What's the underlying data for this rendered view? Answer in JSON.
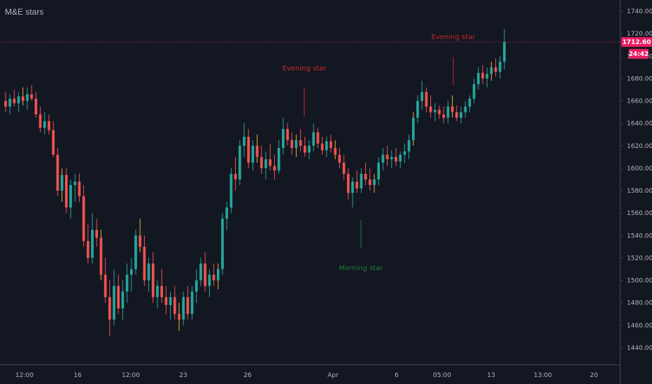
{
  "chart": {
    "title": "M&E stars"
  },
  "colors": {
    "background": "#131722",
    "up": "#26a69a",
    "down": "#ef5350",
    "wick_extra": "#e5b33b",
    "evening_star": "#c62828",
    "morning_star": "#1e7d32",
    "price_line": "#e91e63",
    "axis_text": "#b2b5be",
    "axis_border": "#434651"
  },
  "chart_data": {
    "type": "candlestick",
    "title": "M&E stars",
    "ylim": [
      1425,
      1750
    ],
    "y_ticks": [
      1440,
      1460,
      1480,
      1500,
      1520,
      1540,
      1560,
      1580,
      1600,
      1620,
      1640,
      1660,
      1680,
      1700,
      1720,
      1740
    ],
    "x_tick_labels": [
      "12:00",
      "16",
      "12:00",
      "23",
      "26",
      "Apr",
      "6",
      "05:00",
      "13",
      "13:00",
      "20"
    ],
    "last_price": "1712.60",
    "last_price_value": 1712.6,
    "countdown": "24:42",
    "annotations": [
      {
        "label": "Evening star",
        "kind": "evening",
        "price": 1665
      },
      {
        "label": "Morning star",
        "kind": "morning",
        "price": 1545
      },
      {
        "label": "Evening star",
        "kind": "evening",
        "price": 1695
      }
    ],
    "candles_ohlc": [
      [
        1660,
        1668,
        1650,
        1655
      ],
      [
        1655,
        1666,
        1648,
        1662
      ],
      [
        1662,
        1670,
        1655,
        1658
      ],
      [
        1658,
        1668,
        1650,
        1664
      ],
      [
        1664,
        1672,
        1656,
        1660
      ],
      [
        1660,
        1672,
        1652,
        1666
      ],
      [
        1666,
        1674,
        1660,
        1662
      ],
      [
        1662,
        1668,
        1645,
        1648
      ],
      [
        1648,
        1655,
        1632,
        1636
      ],
      [
        1636,
        1650,
        1630,
        1642
      ],
      [
        1642,
        1648,
        1630,
        1634
      ],
      [
        1634,
        1642,
        1610,
        1612
      ],
      [
        1612,
        1618,
        1575,
        1580
      ],
      [
        1580,
        1600,
        1570,
        1594
      ],
      [
        1594,
        1600,
        1560,
        1565
      ],
      [
        1565,
        1590,
        1555,
        1585
      ],
      [
        1585,
        1595,
        1570,
        1588
      ],
      [
        1588,
        1595,
        1570,
        1575
      ],
      [
        1575,
        1585,
        1530,
        1535
      ],
      [
        1535,
        1550,
        1515,
        1520
      ],
      [
        1520,
        1560,
        1515,
        1545
      ],
      [
        1545,
        1555,
        1530,
        1538
      ],
      [
        1538,
        1545,
        1500,
        1505
      ],
      [
        1505,
        1520,
        1480,
        1485
      ],
      [
        1485,
        1500,
        1450,
        1465
      ],
      [
        1465,
        1510,
        1460,
        1495
      ],
      [
        1495,
        1505,
        1470,
        1475
      ],
      [
        1475,
        1500,
        1465,
        1490
      ],
      [
        1490,
        1515,
        1480,
        1505
      ],
      [
        1505,
        1520,
        1490,
        1510
      ],
      [
        1510,
        1545,
        1505,
        1540
      ],
      [
        1540,
        1555,
        1525,
        1530
      ],
      [
        1530,
        1540,
        1495,
        1500
      ],
      [
        1500,
        1520,
        1490,
        1515
      ],
      [
        1515,
        1525,
        1480,
        1485
      ],
      [
        1485,
        1500,
        1475,
        1495
      ],
      [
        1495,
        1510,
        1480,
        1485
      ],
      [
        1485,
        1495,
        1470,
        1478
      ],
      [
        1478,
        1490,
        1465,
        1485
      ],
      [
        1485,
        1495,
        1465,
        1470
      ],
      [
        1470,
        1480,
        1455,
        1465
      ],
      [
        1465,
        1490,
        1460,
        1485
      ],
      [
        1485,
        1495,
        1465,
        1470
      ],
      [
        1470,
        1495,
        1465,
        1490
      ],
      [
        1490,
        1510,
        1480,
        1500
      ],
      [
        1500,
        1520,
        1495,
        1515
      ],
      [
        1515,
        1525,
        1490,
        1495
      ],
      [
        1495,
        1510,
        1485,
        1505
      ],
      [
        1505,
        1515,
        1495,
        1500
      ],
      [
        1500,
        1515,
        1492,
        1510
      ],
      [
        1510,
        1560,
        1505,
        1555
      ],
      [
        1555,
        1570,
        1545,
        1565
      ],
      [
        1565,
        1600,
        1560,
        1595
      ],
      [
        1595,
        1610,
        1580,
        1590
      ],
      [
        1590,
        1625,
        1585,
        1620
      ],
      [
        1620,
        1640,
        1610,
        1628
      ],
      [
        1628,
        1635,
        1600,
        1605
      ],
      [
        1605,
        1625,
        1598,
        1620
      ],
      [
        1620,
        1630,
        1605,
        1610
      ],
      [
        1610,
        1620,
        1595,
        1600
      ],
      [
        1600,
        1615,
        1590,
        1608
      ],
      [
        1608,
        1622,
        1598,
        1602
      ],
      [
        1602,
        1612,
        1590,
        1598
      ],
      [
        1598,
        1625,
        1595,
        1618
      ],
      [
        1618,
        1645,
        1612,
        1635
      ],
      [
        1635,
        1640,
        1620,
        1625
      ],
      [
        1625,
        1632,
        1612,
        1618
      ],
      [
        1618,
        1630,
        1610,
        1625
      ],
      [
        1625,
        1635,
        1615,
        1620
      ],
      [
        1620,
        1628,
        1610,
        1614
      ],
      [
        1614,
        1625,
        1608,
        1620
      ],
      [
        1620,
        1640,
        1615,
        1632
      ],
      [
        1632,
        1636,
        1618,
        1622
      ],
      [
        1622,
        1628,
        1612,
        1616
      ],
      [
        1616,
        1628,
        1610,
        1624
      ],
      [
        1624,
        1630,
        1614,
        1618
      ],
      [
        1618,
        1625,
        1608,
        1612
      ],
      [
        1612,
        1618,
        1600,
        1605
      ],
      [
        1605,
        1612,
        1590,
        1595
      ],
      [
        1595,
        1600,
        1572,
        1578
      ],
      [
        1578,
        1592,
        1565,
        1588
      ],
      [
        1588,
        1598,
        1578,
        1582
      ],
      [
        1582,
        1600,
        1578,
        1595
      ],
      [
        1595,
        1605,
        1585,
        1590
      ],
      [
        1590,
        1600,
        1580,
        1585
      ],
      [
        1585,
        1595,
        1578,
        1590
      ],
      [
        1590,
        1610,
        1585,
        1605
      ],
      [
        1605,
        1618,
        1598,
        1612
      ],
      [
        1612,
        1620,
        1602,
        1608
      ],
      [
        1608,
        1616,
        1600,
        1610
      ],
      [
        1610,
        1618,
        1602,
        1606
      ],
      [
        1606,
        1615,
        1600,
        1612
      ],
      [
        1612,
        1622,
        1605,
        1615
      ],
      [
        1615,
        1630,
        1608,
        1625
      ],
      [
        1625,
        1650,
        1620,
        1645
      ],
      [
        1645,
        1665,
        1640,
        1660
      ],
      [
        1660,
        1678,
        1652,
        1668
      ],
      [
        1668,
        1672,
        1650,
        1655
      ],
      [
        1655,
        1665,
        1645,
        1650
      ],
      [
        1650,
        1658,
        1642,
        1652
      ],
      [
        1652,
        1656,
        1644,
        1648
      ],
      [
        1648,
        1655,
        1640,
        1645
      ],
      [
        1645,
        1660,
        1640,
        1655
      ],
      [
        1655,
        1665,
        1645,
        1650
      ],
      [
        1650,
        1656,
        1642,
        1645
      ],
      [
        1645,
        1655,
        1640,
        1650
      ],
      [
        1650,
        1660,
        1645,
        1655
      ],
      [
        1655,
        1665,
        1650,
        1662
      ],
      [
        1662,
        1680,
        1658,
        1675
      ],
      [
        1675,
        1690,
        1670,
        1685
      ],
      [
        1685,
        1692,
        1675,
        1680
      ],
      [
        1680,
        1690,
        1672,
        1684
      ],
      [
        1684,
        1695,
        1678,
        1690
      ],
      [
        1690,
        1698,
        1682,
        1686
      ],
      [
        1686,
        1700,
        1680,
        1695
      ],
      [
        1695,
        1724,
        1688,
        1712.6
      ]
    ]
  }
}
